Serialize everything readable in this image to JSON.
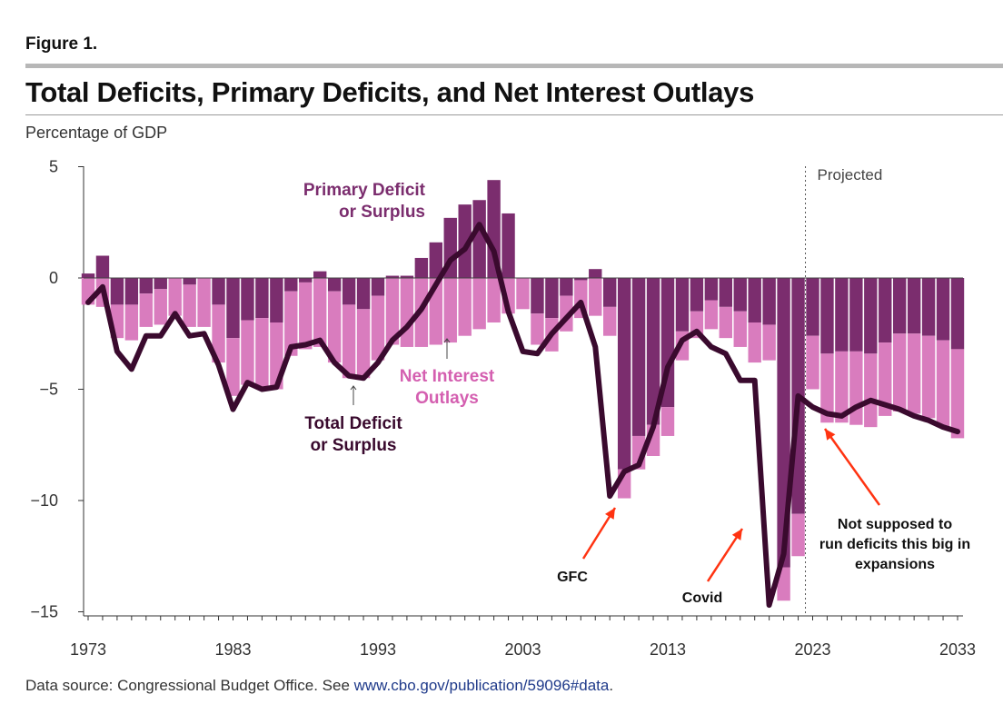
{
  "figure_label": "Figure 1.",
  "title": "Total Deficits, Primary Deficits, and Net Interest Outlays",
  "unit_label": "Percentage of GDP",
  "projected_label": "Projected",
  "source": {
    "prefix": "Data source: Congressional Budget Office. See ",
    "link_text": "www.cbo.gov/publication/59096#data",
    "suffix": "."
  },
  "colors": {
    "primary_deficit": "#7b2d6e",
    "net_interest": "#d97cbe",
    "total_deficit_line": "#3a0a2e",
    "primary_label": "#7b2d6e",
    "net_interest_label": "#d45fb0",
    "total_label": "#3a0a2e",
    "arrow_red": "#ff3311"
  },
  "chart_data": {
    "type": "bar",
    "years": [
      1973,
      1974,
      1975,
      1976,
      1977,
      1978,
      1979,
      1980,
      1981,
      1982,
      1983,
      1984,
      1985,
      1986,
      1987,
      1988,
      1989,
      1990,
      1991,
      1992,
      1993,
      1994,
      1995,
      1996,
      1997,
      1998,
      1999,
      2000,
      2001,
      2002,
      2003,
      2004,
      2005,
      2006,
      2007,
      2008,
      2009,
      2010,
      2011,
      2012,
      2013,
      2014,
      2015,
      2016,
      2017,
      2018,
      2019,
      2020,
      2021,
      2022,
      2023,
      2024,
      2025,
      2026,
      2027,
      2028,
      2029,
      2030,
      2031,
      2032,
      2033
    ],
    "x_tick_labels": [
      "1973",
      "1983",
      "1993",
      "2003",
      "2013",
      "2023",
      "2033"
    ],
    "y_ticks": [
      5,
      0,
      -5,
      -10,
      -15
    ],
    "y_tick_labels": [
      "5",
      "0",
      "−5",
      "−10",
      "−15"
    ],
    "ylim": [
      -15,
      5
    ],
    "projected_from": 2022.5,
    "series": [
      {
        "name": "Primary Deficit or Surplus",
        "kind": "bar",
        "values": [
          0.2,
          1.0,
          -1.2,
          -1.2,
          -0.7,
          -0.5,
          0.0,
          -0.3,
          0.0,
          -1.2,
          -2.7,
          -1.9,
          -1.8,
          -2.0,
          -0.6,
          -0.2,
          0.3,
          -0.6,
          -1.2,
          -1.4,
          -0.8,
          0.1,
          0.1,
          0.9,
          1.6,
          2.7,
          3.3,
          3.5,
          4.4,
          2.9,
          0.0,
          -1.6,
          -1.8,
          -0.8,
          -0.1,
          0.4,
          -1.3,
          -8.6,
          -7.1,
          -6.6,
          -5.8,
          -2.4,
          -1.5,
          -1.0,
          -1.3,
          -1.5,
          -2.0,
          -2.1,
          -13.0,
          -10.6,
          -2.6,
          -3.4,
          -3.3,
          -3.3,
          -3.4,
          -2.9,
          -2.5,
          -2.5,
          -2.6,
          -2.8,
          -3.2
        ]
      },
      {
        "name": "Net Interest Outlays",
        "kind": "bar",
        "values": [
          1.2,
          1.3,
          1.5,
          1.6,
          1.5,
          1.6,
          1.7,
          1.9,
          2.2,
          2.6,
          2.6,
          2.9,
          3.1,
          3.0,
          2.9,
          3.0,
          3.1,
          3.2,
          3.3,
          3.1,
          2.9,
          3.0,
          3.1,
          3.1,
          3.0,
          2.9,
          2.6,
          2.3,
          2.0,
          1.6,
          1.4,
          1.4,
          1.5,
          1.6,
          1.7,
          1.7,
          1.3,
          1.3,
          1.5,
          1.4,
          1.3,
          1.3,
          1.2,
          1.3,
          1.4,
          1.6,
          1.8,
          1.6,
          1.5,
          1.9,
          2.4,
          3.1,
          3.2,
          3.3,
          3.3,
          3.3,
          3.5,
          3.6,
          3.7,
          3.9,
          4.0
        ]
      },
      {
        "name": "Total Deficit or Surplus",
        "kind": "line",
        "values": [
          -1.1,
          -0.4,
          -3.3,
          -4.1,
          -2.6,
          -2.6,
          -1.6,
          -2.6,
          -2.5,
          -3.9,
          -5.9,
          -4.7,
          -5.0,
          -4.9,
          -3.1,
          -3.0,
          -2.8,
          -3.8,
          -4.4,
          -4.5,
          -3.8,
          -2.8,
          -2.2,
          -1.4,
          -0.3,
          0.8,
          1.3,
          2.4,
          1.2,
          -1.5,
          -3.3,
          -3.4,
          -2.5,
          -1.8,
          -1.1,
          -3.1,
          -9.8,
          -8.7,
          -8.4,
          -6.7,
          -4.0,
          -2.8,
          -2.4,
          -3.1,
          -3.4,
          -4.6,
          -4.6,
          -14.7,
          -12.4,
          -5.3,
          -5.8,
          -6.1,
          -6.2,
          -5.8,
          -5.5,
          -5.7,
          -5.9,
          -6.2,
          -6.4,
          -6.7,
          -6.9
        ]
      }
    ],
    "annotations": [
      {
        "text": "Primary Deficit\nor Surplus",
        "color_key": "primary_label"
      },
      {
        "text": "Net Interest\nOutlays",
        "color_key": "net_interest_label"
      },
      {
        "text": "Total Deficit\nor Surplus",
        "color_key": "total_label"
      },
      {
        "text": "GFC"
      },
      {
        "text": "Covid"
      },
      {
        "text": "Not supposed to\nrun deficits this big in\nexpansions"
      }
    ]
  }
}
